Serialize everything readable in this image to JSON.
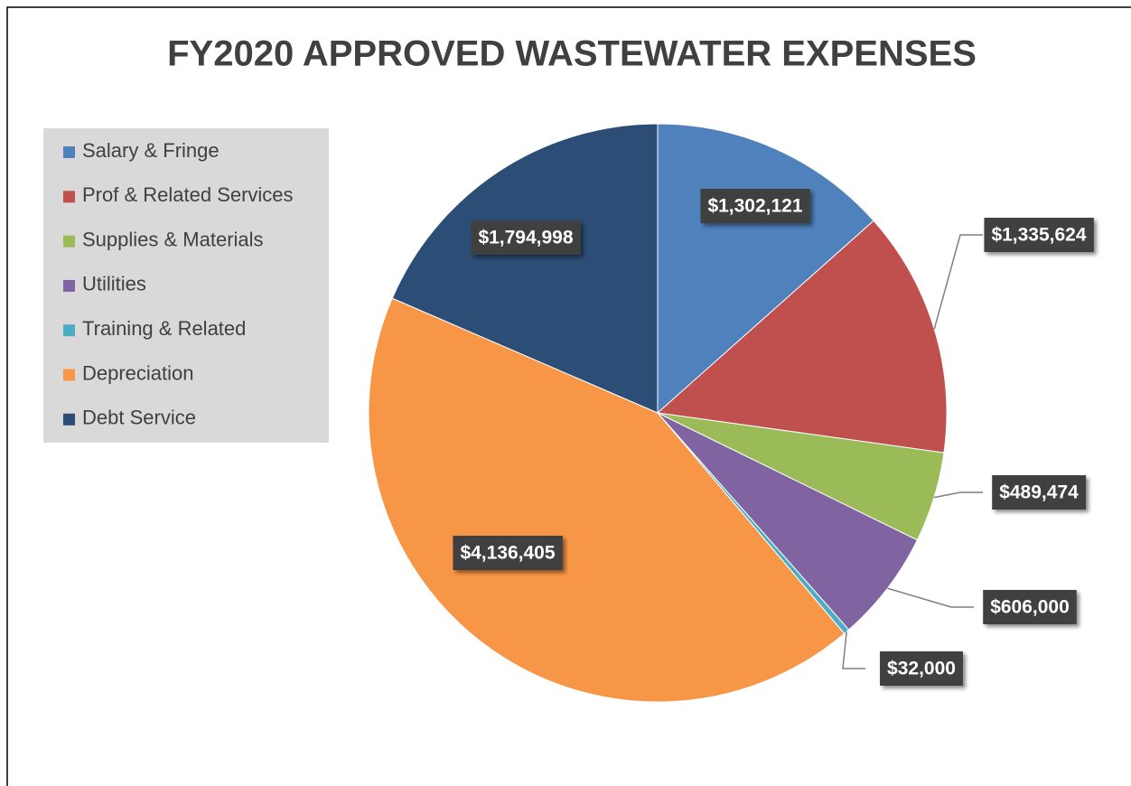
{
  "chart_data": {
    "type": "pie",
    "title": "FY2020 APPROVED WASTEWATER  EXPENSES",
    "categories": [
      "Salary & Fringe",
      "Prof & Related Services",
      "Supplies & Materials",
      "Utilities",
      "Training & Related",
      "Depreciation",
      "Debt Service"
    ],
    "values": [
      1302121,
      1335624,
      489474,
      606000,
      32000,
      4136405,
      1794998
    ],
    "value_labels": [
      "$1,302,121",
      "$1,335,624",
      "$489,474",
      "$606,000",
      "$32,000",
      "$4,136,405",
      "$1,794,998"
    ],
    "colors": [
      "#4f81bd",
      "#c0504d",
      "#9bbb59",
      "#8064a2",
      "#4bacc6",
      "#f79646",
      "#2c4d75"
    ],
    "legend": "left"
  }
}
